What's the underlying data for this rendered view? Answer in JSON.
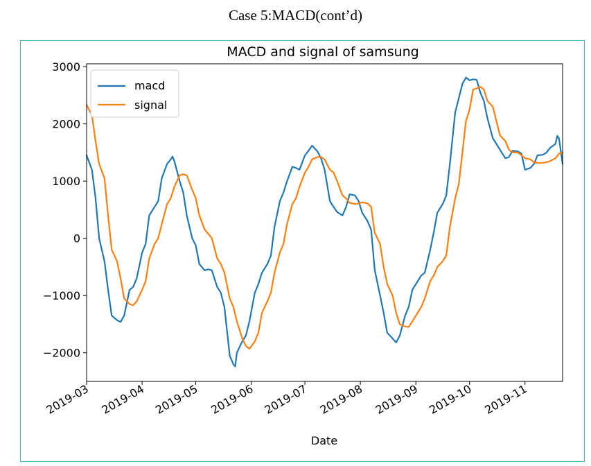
{
  "page": {
    "heading": "Case 5:MACD(cont’d)"
  },
  "chart_data": {
    "type": "line",
    "title": "MACD and signal of samsung",
    "xlabel": "Date",
    "ylabel": "",
    "x_type": "date",
    "xlim": [
      "2019-03-01",
      "2019-11-22"
    ],
    "ylim": [
      -2500,
      3050
    ],
    "yticks": [
      3000,
      2000,
      1000,
      0,
      -1000,
      -2000
    ],
    "ytick_labels": [
      "3000",
      "2000",
      "1000",
      "0",
      "−1000",
      "−2000"
    ],
    "xticks": [
      "2019-03-01",
      "2019-04-01",
      "2019-05-01",
      "2019-06-01",
      "2019-07-01",
      "2019-08-01",
      "2019-09-01",
      "2019-10-01",
      "2019-11-01"
    ],
    "xtick_labels": [
      "2019-03",
      "2019-04",
      "2019-05",
      "2019-06",
      "2019-07",
      "2019-08",
      "2019-09",
      "2019-10",
      "2019-11"
    ],
    "grid": false,
    "legend_position": "top-left",
    "colors": {
      "macd": "#1f77b4",
      "signal": "#ff7f0e",
      "frame": "#4fb3c8"
    },
    "series": [
      {
        "name": "macd",
        "color": "#1f77b4",
        "points": [
          [
            "2019-03-01",
            1450
          ],
          [
            "2019-03-04",
            1200
          ],
          [
            "2019-03-06",
            700
          ],
          [
            "2019-03-08",
            0
          ],
          [
            "2019-03-11",
            -400
          ],
          [
            "2019-03-13",
            -900
          ],
          [
            "2019-03-15",
            -1350
          ],
          [
            "2019-03-18",
            -1430
          ],
          [
            "2019-03-20",
            -1460
          ],
          [
            "2019-03-22",
            -1350
          ],
          [
            "2019-03-25",
            -900
          ],
          [
            "2019-03-27",
            -850
          ],
          [
            "2019-03-29",
            -700
          ],
          [
            "2019-04-01",
            -250
          ],
          [
            "2019-04-03",
            -100
          ],
          [
            "2019-04-05",
            400
          ],
          [
            "2019-04-08",
            550
          ],
          [
            "2019-04-10",
            650
          ],
          [
            "2019-04-12",
            1050
          ],
          [
            "2019-04-15",
            1300
          ],
          [
            "2019-04-17",
            1380
          ],
          [
            "2019-04-18",
            1430
          ],
          [
            "2019-04-19",
            1350
          ],
          [
            "2019-04-22",
            1000
          ],
          [
            "2019-04-24",
            800
          ],
          [
            "2019-04-26",
            400
          ],
          [
            "2019-04-29",
            0
          ],
          [
            "2019-05-01",
            -120
          ],
          [
            "2019-05-03",
            -450
          ],
          [
            "2019-05-06",
            -560
          ],
          [
            "2019-05-08",
            -540
          ],
          [
            "2019-05-10",
            -560
          ],
          [
            "2019-05-13",
            -850
          ],
          [
            "2019-05-15",
            -950
          ],
          [
            "2019-05-17",
            -1200
          ],
          [
            "2019-05-20",
            -2050
          ],
          [
            "2019-05-22",
            -2200
          ],
          [
            "2019-05-23",
            -2240
          ],
          [
            "2019-05-24",
            -2000
          ],
          [
            "2019-05-27",
            -1800
          ],
          [
            "2019-05-29",
            -1700
          ],
          [
            "2019-05-31",
            -1450
          ],
          [
            "2019-06-03",
            -950
          ],
          [
            "2019-06-05",
            -800
          ],
          [
            "2019-06-07",
            -600
          ],
          [
            "2019-06-10",
            -450
          ],
          [
            "2019-06-12",
            -300
          ],
          [
            "2019-06-14",
            200
          ],
          [
            "2019-06-17",
            650
          ],
          [
            "2019-06-19",
            800
          ],
          [
            "2019-06-21",
            1000
          ],
          [
            "2019-06-24",
            1250
          ],
          [
            "2019-06-26",
            1230
          ],
          [
            "2019-06-28",
            1200
          ],
          [
            "2019-07-01",
            1450
          ],
          [
            "2019-07-03",
            1530
          ],
          [
            "2019-07-05",
            1620
          ],
          [
            "2019-07-08",
            1520
          ],
          [
            "2019-07-10",
            1400
          ],
          [
            "2019-07-12",
            1200
          ],
          [
            "2019-07-15",
            650
          ],
          [
            "2019-07-17",
            550
          ],
          [
            "2019-07-19",
            460
          ],
          [
            "2019-07-22",
            400
          ],
          [
            "2019-07-24",
            550
          ],
          [
            "2019-07-26",
            770
          ],
          [
            "2019-07-29",
            750
          ],
          [
            "2019-07-31",
            650
          ],
          [
            "2019-08-02",
            450
          ],
          [
            "2019-08-05",
            300
          ],
          [
            "2019-08-07",
            150
          ],
          [
            "2019-08-09",
            -550
          ],
          [
            "2019-08-12",
            -1000
          ],
          [
            "2019-08-14",
            -1300
          ],
          [
            "2019-08-16",
            -1650
          ],
          [
            "2019-08-19",
            -1750
          ],
          [
            "2019-08-21",
            -1820
          ],
          [
            "2019-08-23",
            -1700
          ],
          [
            "2019-08-26",
            -1350
          ],
          [
            "2019-08-28",
            -1200
          ],
          [
            "2019-08-30",
            -900
          ],
          [
            "2019-09-02",
            -750
          ],
          [
            "2019-09-04",
            -650
          ],
          [
            "2019-09-06",
            -600
          ],
          [
            "2019-09-09",
            -200
          ],
          [
            "2019-09-11",
            100
          ],
          [
            "2019-09-13",
            450
          ],
          [
            "2019-09-16",
            600
          ],
          [
            "2019-09-18",
            750
          ],
          [
            "2019-09-20",
            1300
          ],
          [
            "2019-09-23",
            2200
          ],
          [
            "2019-09-25",
            2450
          ],
          [
            "2019-09-27",
            2700
          ],
          [
            "2019-09-29",
            2810
          ],
          [
            "2019-10-01",
            2760
          ],
          [
            "2019-10-03",
            2780
          ],
          [
            "2019-10-05",
            2770
          ],
          [
            "2019-10-07",
            2550
          ],
          [
            "2019-10-09",
            2400
          ],
          [
            "2019-10-11",
            2100
          ],
          [
            "2019-10-14",
            1750
          ],
          [
            "2019-10-16",
            1650
          ],
          [
            "2019-10-18",
            1550
          ],
          [
            "2019-10-21",
            1400
          ],
          [
            "2019-10-23",
            1420
          ],
          [
            "2019-10-25",
            1530
          ],
          [
            "2019-10-28",
            1520
          ],
          [
            "2019-10-30",
            1480
          ],
          [
            "2019-11-01",
            1200
          ],
          [
            "2019-11-04",
            1230
          ],
          [
            "2019-11-06",
            1300
          ],
          [
            "2019-11-08",
            1450
          ],
          [
            "2019-11-11",
            1460
          ],
          [
            "2019-11-13",
            1500
          ],
          [
            "2019-11-15",
            1580
          ],
          [
            "2019-11-18",
            1650
          ],
          [
            "2019-11-19",
            1790
          ],
          [
            "2019-11-20",
            1750
          ],
          [
            "2019-11-22",
            1300
          ]
        ]
      },
      {
        "name": "signal",
        "color": "#ff7f0e",
        "points": [
          [
            "2019-03-01",
            2330
          ],
          [
            "2019-03-04",
            2150
          ],
          [
            "2019-03-06",
            1700
          ],
          [
            "2019-03-08",
            1300
          ],
          [
            "2019-03-11",
            1050
          ],
          [
            "2019-03-13",
            400
          ],
          [
            "2019-03-15",
            -200
          ],
          [
            "2019-03-18",
            -400
          ],
          [
            "2019-03-20",
            -700
          ],
          [
            "2019-03-22",
            -1050
          ],
          [
            "2019-03-25",
            -1150
          ],
          [
            "2019-03-27",
            -1170
          ],
          [
            "2019-03-29",
            -1100
          ],
          [
            "2019-04-01",
            -900
          ],
          [
            "2019-04-03",
            -750
          ],
          [
            "2019-04-05",
            -350
          ],
          [
            "2019-04-08",
            -100
          ],
          [
            "2019-04-10",
            0
          ],
          [
            "2019-04-12",
            250
          ],
          [
            "2019-04-15",
            600
          ],
          [
            "2019-04-17",
            700
          ],
          [
            "2019-04-19",
            900
          ],
          [
            "2019-04-22",
            1100
          ],
          [
            "2019-04-24",
            1120
          ],
          [
            "2019-04-26",
            1100
          ],
          [
            "2019-04-29",
            850
          ],
          [
            "2019-05-01",
            700
          ],
          [
            "2019-05-03",
            400
          ],
          [
            "2019-05-06",
            150
          ],
          [
            "2019-05-08",
            80
          ],
          [
            "2019-05-10",
            0
          ],
          [
            "2019-05-13",
            -350
          ],
          [
            "2019-05-15",
            -450
          ],
          [
            "2019-05-17",
            -600
          ],
          [
            "2019-05-20",
            -1050
          ],
          [
            "2019-05-22",
            -1200
          ],
          [
            "2019-05-24",
            -1450
          ],
          [
            "2019-05-27",
            -1750
          ],
          [
            "2019-05-29",
            -1880
          ],
          [
            "2019-05-31",
            -1930
          ],
          [
            "2019-06-03",
            -1800
          ],
          [
            "2019-06-05",
            -1650
          ],
          [
            "2019-06-07",
            -1300
          ],
          [
            "2019-06-10",
            -1100
          ],
          [
            "2019-06-12",
            -950
          ],
          [
            "2019-06-14",
            -600
          ],
          [
            "2019-06-17",
            -250
          ],
          [
            "2019-06-19",
            -100
          ],
          [
            "2019-06-21",
            250
          ],
          [
            "2019-06-24",
            600
          ],
          [
            "2019-06-26",
            700
          ],
          [
            "2019-06-28",
            900
          ],
          [
            "2019-07-01",
            1150
          ],
          [
            "2019-07-03",
            1250
          ],
          [
            "2019-07-05",
            1380
          ],
          [
            "2019-07-08",
            1420
          ],
          [
            "2019-07-10",
            1420
          ],
          [
            "2019-07-12",
            1380
          ],
          [
            "2019-07-15",
            1200
          ],
          [
            "2019-07-17",
            1150
          ],
          [
            "2019-07-19",
            1000
          ],
          [
            "2019-07-22",
            750
          ],
          [
            "2019-07-24",
            700
          ],
          [
            "2019-07-26",
            620
          ],
          [
            "2019-07-29",
            600
          ],
          [
            "2019-07-31",
            610
          ],
          [
            "2019-08-02",
            630
          ],
          [
            "2019-08-05",
            610
          ],
          [
            "2019-08-07",
            550
          ],
          [
            "2019-08-09",
            100
          ],
          [
            "2019-08-12",
            -100
          ],
          [
            "2019-08-14",
            -500
          ],
          [
            "2019-08-16",
            -800
          ],
          [
            "2019-08-19",
            -1000
          ],
          [
            "2019-08-21",
            -1300
          ],
          [
            "2019-08-23",
            -1500
          ],
          [
            "2019-08-26",
            -1540
          ],
          [
            "2019-08-28",
            -1550
          ],
          [
            "2019-08-30",
            -1450
          ],
          [
            "2019-09-02",
            -1300
          ],
          [
            "2019-09-04",
            -1200
          ],
          [
            "2019-09-06",
            -1050
          ],
          [
            "2019-09-09",
            -750
          ],
          [
            "2019-09-11",
            -650
          ],
          [
            "2019-09-13",
            -500
          ],
          [
            "2019-09-16",
            -400
          ],
          [
            "2019-09-18",
            -300
          ],
          [
            "2019-09-20",
            200
          ],
          [
            "2019-09-23",
            700
          ],
          [
            "2019-09-25",
            950
          ],
          [
            "2019-09-27",
            1500
          ],
          [
            "2019-09-29",
            2050
          ],
          [
            "2019-10-01",
            2250
          ],
          [
            "2019-10-03",
            2600
          ],
          [
            "2019-10-05",
            2620
          ],
          [
            "2019-10-07",
            2650
          ],
          [
            "2019-10-09",
            2600
          ],
          [
            "2019-10-11",
            2400
          ],
          [
            "2019-10-14",
            2300
          ],
          [
            "2019-10-16",
            2050
          ],
          [
            "2019-10-18",
            1800
          ],
          [
            "2019-10-21",
            1700
          ],
          [
            "2019-10-23",
            1550
          ],
          [
            "2019-10-25",
            1500
          ],
          [
            "2019-10-28",
            1500
          ],
          [
            "2019-10-30",
            1450
          ],
          [
            "2019-11-01",
            1400
          ],
          [
            "2019-11-04",
            1380
          ],
          [
            "2019-11-06",
            1330
          ],
          [
            "2019-11-08",
            1320
          ],
          [
            "2019-11-11",
            1320
          ],
          [
            "2019-11-13",
            1330
          ],
          [
            "2019-11-15",
            1350
          ],
          [
            "2019-11-18",
            1400
          ],
          [
            "2019-11-20",
            1480
          ],
          [
            "2019-11-22",
            1500
          ]
        ]
      }
    ]
  }
}
